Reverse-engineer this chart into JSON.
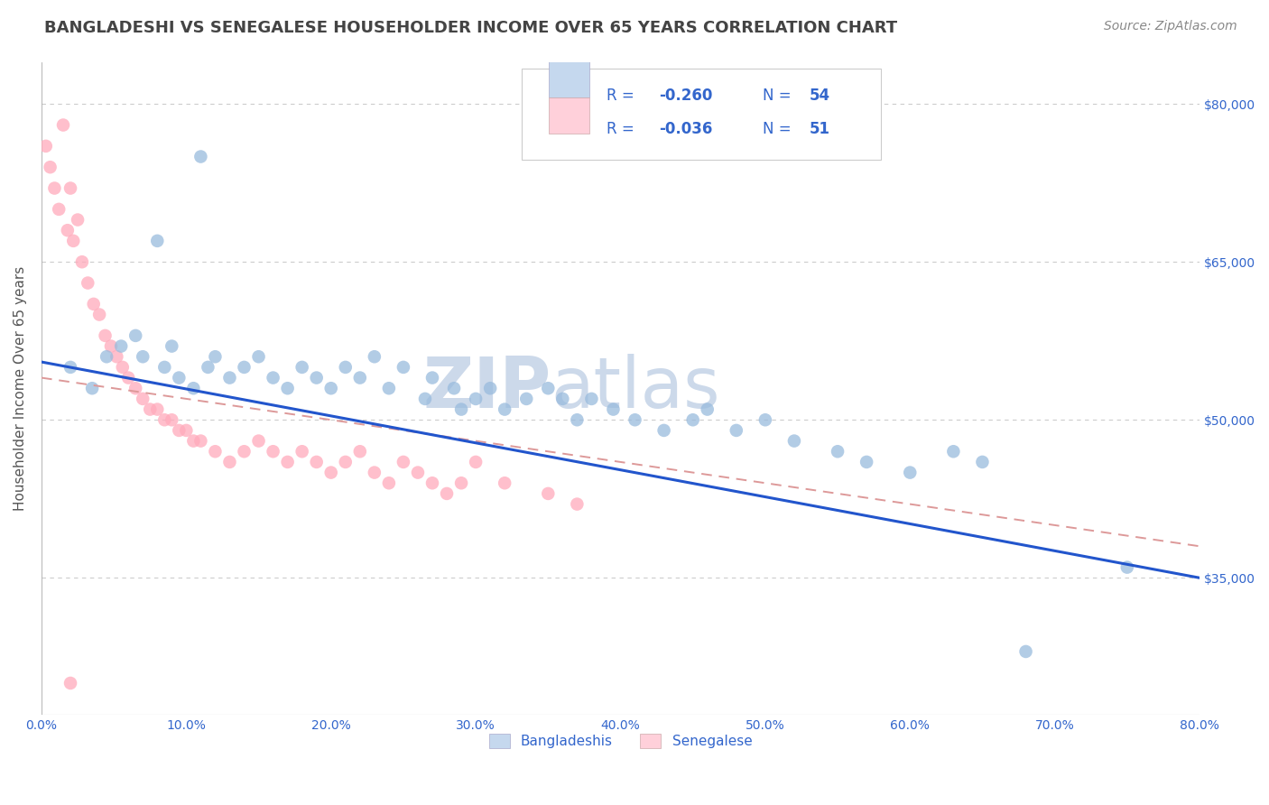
{
  "title": "BANGLADESHI VS SENEGALESE HOUSEHOLDER INCOME OVER 65 YEARS CORRELATION CHART",
  "source_text": "Source: ZipAtlas.com",
  "ylabel": "Householder Income Over 65 years",
  "watermark_zip": "ZIP",
  "watermark_atlas": "atlas",
  "blue_color": "#99bbdd",
  "pink_color": "#ffaabb",
  "blue_legend_fill": "#c5d8ee",
  "pink_legend_fill": "#ffd0da",
  "trend_blue": "#2255cc",
  "trend_pink": "#dd9999",
  "title_color": "#444444",
  "axis_label_color": "#3366cc",
  "ylabel_color": "#555555",
  "background_color": "#ffffff",
  "grid_color": "#cccccc",
  "watermark_color": "#ccd9ea",
  "xmin": 0.0,
  "xmax": 80.0,
  "ymin": 22000,
  "ymax": 84000,
  "yticks": [
    35000,
    50000,
    65000,
    80000
  ],
  "ytick_labels": [
    "$35,000",
    "$50,000",
    "$65,000",
    "$80,000"
  ],
  "xticks": [
    0,
    10,
    20,
    30,
    40,
    50,
    60,
    70,
    80
  ],
  "xtick_labels": [
    "0.0%",
    "10.0%",
    "20.0%",
    "30.0%",
    "40.0%",
    "50.0%",
    "60.0%",
    "70.0%",
    "80.0%"
  ],
  "bangladeshi_x": [
    2.0,
    8.0,
    11.0,
    3.5,
    4.5,
    5.5,
    6.5,
    7.0,
    8.5,
    9.0,
    9.5,
    10.5,
    11.5,
    12.0,
    13.0,
    14.0,
    15.0,
    16.0,
    17.0,
    18.0,
    19.0,
    20.0,
    21.0,
    22.0,
    23.0,
    24.0,
    25.0,
    26.5,
    27.0,
    28.5,
    29.0,
    30.0,
    31.0,
    32.0,
    33.5,
    35.0,
    36.0,
    37.0,
    38.0,
    39.5,
    41.0,
    43.0,
    45.0,
    46.0,
    48.0,
    50.0,
    52.0,
    55.0,
    57.0,
    60.0,
    63.0,
    65.0,
    68.0,
    75.0
  ],
  "bangladeshi_y": [
    55000,
    67000,
    75000,
    53000,
    56000,
    57000,
    58000,
    56000,
    55000,
    57000,
    54000,
    53000,
    55000,
    56000,
    54000,
    55000,
    56000,
    54000,
    53000,
    55000,
    54000,
    53000,
    55000,
    54000,
    56000,
    53000,
    55000,
    52000,
    54000,
    53000,
    51000,
    52000,
    53000,
    51000,
    52000,
    53000,
    52000,
    50000,
    52000,
    51000,
    50000,
    49000,
    50000,
    51000,
    49000,
    50000,
    48000,
    47000,
    46000,
    45000,
    47000,
    46000,
    28000,
    36000
  ],
  "senegalese_x": [
    1.5,
    2.0,
    2.5,
    0.3,
    0.6,
    0.9,
    1.2,
    1.8,
    2.2,
    2.8,
    3.2,
    3.6,
    4.0,
    4.4,
    4.8,
    5.2,
    5.6,
    6.0,
    6.5,
    7.0,
    7.5,
    8.0,
    8.5,
    9.0,
    9.5,
    10.0,
    10.5,
    11.0,
    12.0,
    13.0,
    14.0,
    15.0,
    16.0,
    17.0,
    18.0,
    19.0,
    20.0,
    21.0,
    22.0,
    23.0,
    24.0,
    25.0,
    26.0,
    27.0,
    28.0,
    29.0,
    30.0,
    32.0,
    35.0,
    37.0,
    2.0
  ],
  "senegalese_y": [
    78000,
    72000,
    69000,
    76000,
    74000,
    72000,
    70000,
    68000,
    67000,
    65000,
    63000,
    61000,
    60000,
    58000,
    57000,
    56000,
    55000,
    54000,
    53000,
    52000,
    51000,
    51000,
    50000,
    50000,
    49000,
    49000,
    48000,
    48000,
    47000,
    46000,
    47000,
    48000,
    47000,
    46000,
    47000,
    46000,
    45000,
    46000,
    47000,
    45000,
    44000,
    46000,
    45000,
    44000,
    43000,
    44000,
    46000,
    44000,
    43000,
    42000,
    25000
  ],
  "trend_blue_x0": 0.0,
  "trend_blue_y0": 55500,
  "trend_blue_x1": 80.0,
  "trend_blue_y1": 35000,
  "trend_pink_x0": 0.0,
  "trend_pink_y0": 54000,
  "trend_pink_x1": 80.0,
  "trend_pink_y1": 38000
}
